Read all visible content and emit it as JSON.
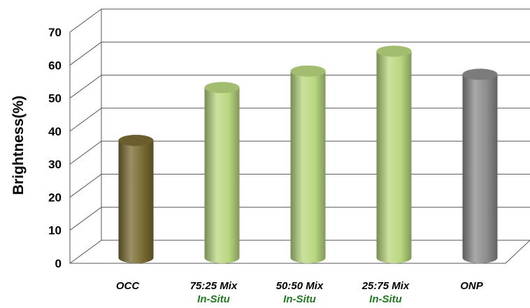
{
  "chart_data": {
    "type": "bar",
    "title": "",
    "ylabel": "Brightness(%)",
    "xlabel": "",
    "ylim": [
      0,
      70
    ],
    "yticks": [
      0,
      10,
      20,
      30,
      40,
      50,
      60,
      70
    ],
    "grid": true,
    "legend": "none",
    "style": "3d-cylinder",
    "categories": [
      {
        "line1": "OCC",
        "line2": ""
      },
      {
        "line1": "75:25 Mix",
        "line2": "In-Situ"
      },
      {
        "line1": "50:50 Mix",
        "line2": "In-Situ"
      },
      {
        "line1": "25:75 Mix",
        "line2": "In-Situ"
      },
      {
        "line1": "ONP",
        "line2": ""
      }
    ],
    "values": [
      35,
      51,
      56,
      62,
      55
    ],
    "bar_colors": [
      "#7a6b32",
      "#b9d77f",
      "#b9d77f",
      "#b9d77f",
      "#8c8c8c"
    ],
    "subtitle_color": "#1f7a1f"
  }
}
